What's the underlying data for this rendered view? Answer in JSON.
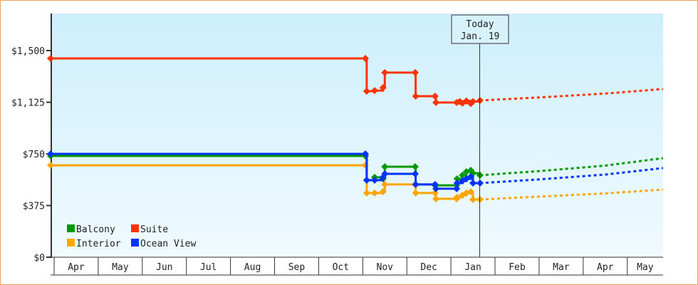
{
  "chart_data": {
    "type": "line",
    "title": "",
    "xlabel": "",
    "ylabel": "",
    "x_unit": "months since Apr 1",
    "x_tick_labels": [
      "Apr",
      "May",
      "Jun",
      "Jul",
      "Aug",
      "Sep",
      "Oct",
      "Nov",
      "Dec",
      "Jan",
      "Feb",
      "Mar",
      "Apr",
      "May"
    ],
    "y_ticks": [
      0,
      375,
      750,
      1125,
      1500
    ],
    "y_tick_labels": [
      "$0",
      "$375",
      "$750",
      "$1,125",
      "$1,500"
    ],
    "ylim": [
      0,
      1770
    ],
    "xlim": [
      -0.1,
      13.9
    ],
    "today": {
      "label": "Today",
      "date": "Jan. 19",
      "x": 9.66
    },
    "legend": {
      "placement": "bottom-left"
    },
    "series": [
      {
        "name": "Balcony",
        "color": "#009900",
        "points": [
          [
            -0.08,
            735
          ],
          [
            7.06,
            735
          ],
          [
            7.09,
            559
          ],
          [
            7.27,
            580
          ],
          [
            7.46,
            569
          ],
          [
            7.5,
            657
          ],
          [
            8.19,
            657
          ],
          [
            8.2,
            528
          ],
          [
            8.64,
            522
          ],
          [
            9.13,
            522
          ],
          [
            9.14,
            569
          ],
          [
            9.26,
            595
          ],
          [
            9.35,
            621
          ],
          [
            9.45,
            631
          ],
          [
            9.5,
            610
          ],
          [
            9.66,
            595
          ]
        ],
        "forecast": [
          [
            9.66,
            595
          ],
          [
            11,
            625
          ],
          [
            12.5,
            665
          ],
          [
            13.81,
            719
          ]
        ]
      },
      {
        "name": "Suite",
        "color": "#ff3300",
        "points": [
          [
            -0.08,
            1443
          ],
          [
            7.06,
            1443
          ],
          [
            7.09,
            1205
          ],
          [
            7.27,
            1210
          ],
          [
            7.46,
            1231
          ],
          [
            7.5,
            1340
          ],
          [
            8.19,
            1340
          ],
          [
            8.2,
            1169
          ],
          [
            8.64,
            1169
          ],
          [
            8.66,
            1123
          ],
          [
            9.13,
            1123
          ],
          [
            9.2,
            1130
          ],
          [
            9.26,
            1118
          ],
          [
            9.35,
            1135
          ],
          [
            9.45,
            1115
          ],
          [
            9.5,
            1130
          ],
          [
            9.66,
            1138
          ]
        ],
        "forecast": [
          [
            9.66,
            1138
          ],
          [
            11,
            1160
          ],
          [
            12.5,
            1188
          ],
          [
            13.81,
            1221
          ]
        ]
      },
      {
        "name": "Interior",
        "color": "#ffa500",
        "points": [
          [
            -0.08,
            667
          ],
          [
            7.06,
            667
          ],
          [
            7.09,
            466
          ],
          [
            7.27,
            466
          ],
          [
            7.46,
            476
          ],
          [
            7.5,
            528
          ],
          [
            8.19,
            528
          ],
          [
            8.2,
            466
          ],
          [
            8.64,
            466
          ],
          [
            8.66,
            424
          ],
          [
            9.13,
            424
          ],
          [
            9.14,
            435
          ],
          [
            9.26,
            450
          ],
          [
            9.35,
            466
          ],
          [
            9.45,
            476
          ],
          [
            9.5,
            419
          ],
          [
            9.66,
            419
          ]
        ],
        "forecast": [
          [
            9.66,
            419
          ],
          [
            11,
            440
          ],
          [
            12.5,
            463
          ],
          [
            13.81,
            491
          ]
        ]
      },
      {
        "name": "Ocean View",
        "color": "#0033ff",
        "points": [
          [
            -0.08,
            750
          ],
          [
            7.06,
            750
          ],
          [
            7.09,
            559
          ],
          [
            7.27,
            559
          ],
          [
            7.46,
            580
          ],
          [
            7.5,
            605
          ],
          [
            8.19,
            605
          ],
          [
            8.2,
            528
          ],
          [
            8.64,
            528
          ],
          [
            8.66,
            497
          ],
          [
            9.13,
            497
          ],
          [
            9.14,
            538
          ],
          [
            9.26,
            554
          ],
          [
            9.35,
            569
          ],
          [
            9.45,
            585
          ],
          [
            9.5,
            538
          ],
          [
            9.66,
            538
          ]
        ],
        "forecast": [
          [
            9.66,
            538
          ],
          [
            11,
            565
          ],
          [
            12.5,
            600
          ],
          [
            13.81,
            647
          ]
        ]
      }
    ]
  }
}
